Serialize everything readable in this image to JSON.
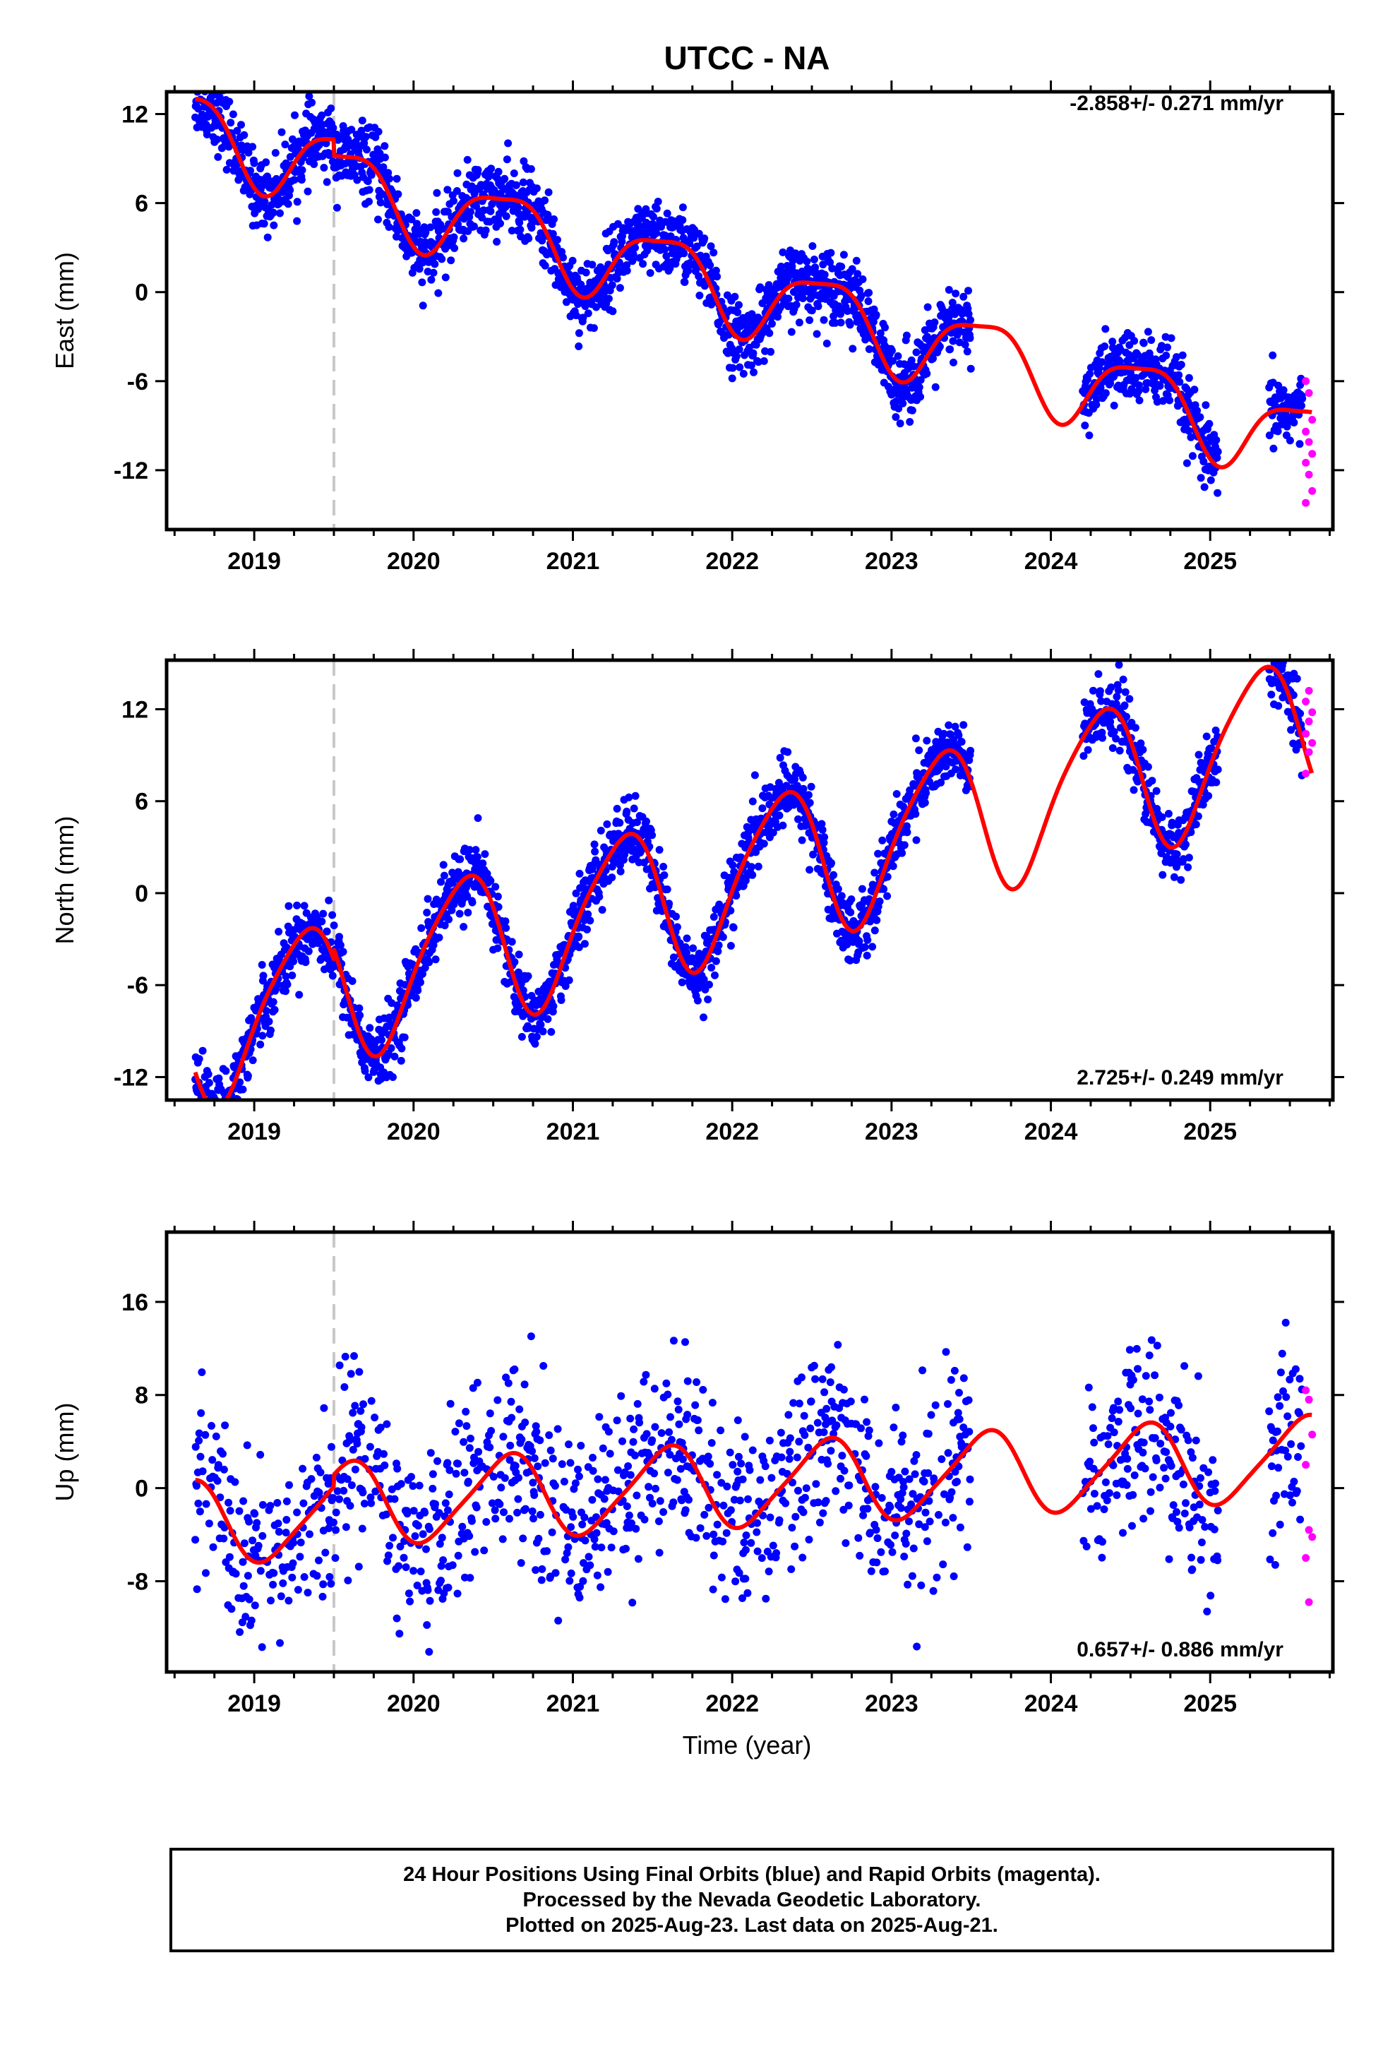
{
  "title": "UTCC - NA",
  "x_tick_labels": [
    "2019",
    "2020",
    "2021",
    "2022",
    "2023",
    "2024",
    "2025"
  ],
  "xlabel": "Time (year)",
  "footer": {
    "line1": "24 Hour Positions Using Final Orbits (blue) and Rapid Orbits (magenta).",
    "line2": "Processed by the Nevada Geodetic Laboratory.",
    "line3": "Plotted on 2025-Aug-23. Last data on 2025-Aug-21."
  },
  "colors": {
    "final": "#0000ff",
    "rapid": "#ff00ff",
    "model": "#ff0000",
    "marker": "#c8c8c8"
  },
  "chart_data": [
    {
      "type": "scatter",
      "panel": "east",
      "ylabel": "East (mm)",
      "rate_label": "-2.858+/- 0.271 mm/yr",
      "rate_position": "top-right",
      "xlim": [
        2018.45,
        2025.77
      ],
      "ylim": [
        -16,
        13.5
      ],
      "y_ticks": [
        12,
        6,
        0,
        -6,
        -12
      ],
      "y_tick_labels": [
        "12",
        "6",
        "0",
        "-6",
        "-12"
      ],
      "event_line_x": 2019.5,
      "trend": {
        "ref_year": 2022.0,
        "offset": 0.25,
        "rate": -2.858,
        "amp_annual": 2.6,
        "phase_annual": 2019.57,
        "amp_semi": 0.7,
        "phase_semi": 2019.3,
        "step_at": 2019.5,
        "step": 1.1
      },
      "final_series": {
        "name": "Final Orbits",
        "segments": [
          [
            2018.63,
            2023.5
          ],
          [
            2024.2,
            2025.05
          ],
          [
            2025.37,
            2025.58
          ]
        ],
        "scatter": 1.2,
        "density": 1
      },
      "rapid_series": {
        "name": "Rapid Orbits",
        "x_range": [
          2025.6,
          2025.64
        ],
        "y_values": [
          -6,
          -6.8,
          -8.6,
          -9.4,
          -10.1,
          -10.9,
          -11.5,
          -12.3,
          -13.4,
          -14.2
        ]
      }
    },
    {
      "type": "scatter",
      "panel": "north",
      "ylabel": "North (mm)",
      "rate_label": "2.725+/- 0.249 mm/yr",
      "rate_position": "bottom-right",
      "xlim": [
        2018.45,
        2025.77
      ],
      "ylim": [
        -13.5,
        15.2
      ],
      "y_ticks": [
        12,
        6,
        0,
        -6,
        -12
      ],
      "y_tick_labels": [
        "12",
        "6",
        "0",
        "-6",
        "-12"
      ],
      "event_line_x": 2019.5,
      "trend": {
        "ref_year": 2022.0,
        "offset": 0.9,
        "rate": 2.725,
        "amp_annual": 4.9,
        "phase_annual": 2019.3,
        "amp_semi": 0.8,
        "phase_semi": 2019.47,
        "step_at": 2019.5,
        "step": -0.7
      },
      "final_series": {
        "name": "Final Orbits",
        "segments": [
          [
            2018.63,
            2023.5
          ],
          [
            2024.2,
            2025.05
          ],
          [
            2025.37,
            2025.58
          ]
        ],
        "scatter": 1.1,
        "density": 1
      },
      "rapid_series": {
        "name": "Rapid Orbits",
        "x_range": [
          2025.6,
          2025.64
        ],
        "y_values": [
          7.8,
          9.2,
          9.8,
          10.4,
          11.2,
          11.8,
          12.5,
          13.2
        ]
      }
    },
    {
      "type": "scatter",
      "panel": "up",
      "ylabel": "Up (mm)",
      "rate_label": "0.657+/- 0.886 mm/yr",
      "rate_position": "bottom-right",
      "xlim": [
        2018.45,
        2025.77
      ],
      "ylim": [
        -15.8,
        22
      ],
      "y_ticks": [
        16,
        8,
        0,
        -8
      ],
      "y_tick_labels": [
        "16",
        "8",
        "0",
        "-8"
      ],
      "event_line_x": 2019.5,
      "trend": {
        "ref_year": 2022.0,
        "offset": 0.2,
        "rate": 0.657,
        "amp_annual": 3.5,
        "phase_annual": 2018.58,
        "amp_semi": 0.6,
        "phase_semi": 2018.7,
        "step_at": 2019.5,
        "step": -1.0
      },
      "final_series": {
        "name": "Final Orbits",
        "segments": [
          [
            2018.63,
            2023.5
          ],
          [
            2024.2,
            2025.05
          ],
          [
            2025.37,
            2025.58
          ]
        ],
        "scatter": 4.0,
        "density": 0.55
      },
      "rapid_series": {
        "name": "Rapid Orbits",
        "x_range": [
          2025.6,
          2025.64
        ],
        "y_values": [
          8.4,
          7.6,
          4.6,
          2.0,
          -3.6,
          -4.2,
          -6.0,
          -9.8
        ]
      }
    }
  ]
}
